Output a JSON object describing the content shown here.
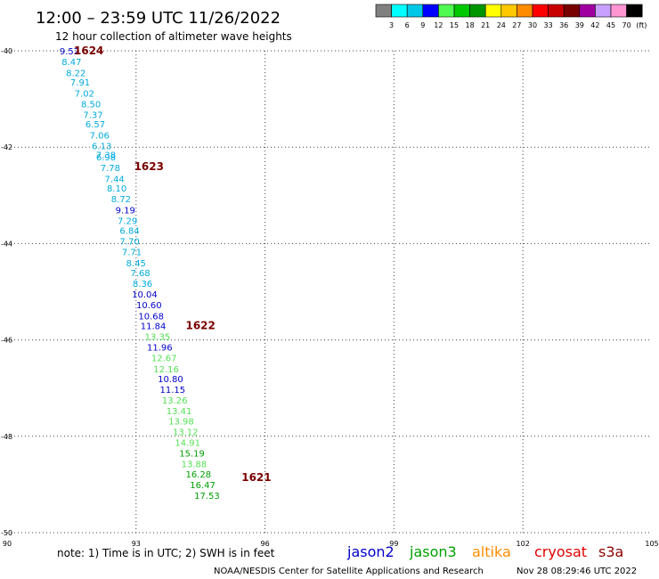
{
  "header": {
    "title": "12:00 – 23:59 UTC 11/26/2022",
    "subtitle": "12 hour collection of altimeter wave heights"
  },
  "legend": {
    "colors": [
      "#808080",
      "#00ffff",
      "#00c8e6",
      "#0000ff",
      "#50fa50",
      "#00c800",
      "#009600",
      "#ffff00",
      "#ffc800",
      "#ff8c00",
      "#ff0000",
      "#c80000",
      "#780000",
      "#a000a0",
      "#c8a0ff",
      "#ff96d2",
      "#000000"
    ],
    "labels": [
      "3",
      "6",
      "9",
      "12",
      "15",
      "18",
      "21",
      "24",
      "27",
      "30",
      "33",
      "36",
      "39",
      "42",
      "45",
      "70",
      "(ft)"
    ]
  },
  "footer": {
    "note": "note:  1) Time is in UTC;  2) SWH is in feet",
    "satellites": [
      {
        "name": "jason2",
        "color": "#0000c8"
      },
      {
        "name": "jason3",
        "color": "#00a000"
      },
      {
        "name": "altika",
        "color": "#ff8c00"
      },
      {
        "name": "cryosat",
        "color": "#e00000"
      },
      {
        "name": "s3a",
        "color": "#8b0000"
      }
    ],
    "credit": "NOAA/NESDIS Center for Satellite Applications and Research",
    "generated": "Nov 28 08:29:46 UTC 2022"
  },
  "chart_data": {
    "type": "scatter",
    "title": "12:00 – 23:59 UTC 11/26/2022",
    "xlabel": "",
    "ylabel": "",
    "xlim": [
      90,
      105
    ],
    "ylim": [
      -50,
      -40
    ],
    "x_ticks": [
      90,
      93,
      96,
      99,
      102,
      105
    ],
    "y_ticks": [
      -40,
      -42,
      -44,
      -46,
      -48,
      -50
    ],
    "grid": true,
    "points": [
      {
        "x": 91.45,
        "y": -40.0,
        "v": "9.52",
        "c": "#0000c8"
      },
      {
        "x": 91.5,
        "y": -40.22,
        "v": "8.47",
        "c": "#00aadd"
      },
      {
        "x": 91.6,
        "y": -40.45,
        "v": "8.22",
        "c": "#00aadd"
      },
      {
        "x": 91.7,
        "y": -40.65,
        "v": "7.91",
        "c": "#00aadd"
      },
      {
        "x": 91.8,
        "y": -40.88,
        "v": "7.02",
        "c": "#00aadd"
      },
      {
        "x": 91.95,
        "y": -41.1,
        "v": "8.50",
        "c": "#00aadd"
      },
      {
        "x": 92.0,
        "y": -41.32,
        "v": "7.37",
        "c": "#00aadd"
      },
      {
        "x": 92.05,
        "y": -41.52,
        "v": "6.57",
        "c": "#00aadd"
      },
      {
        "x": 92.15,
        "y": -41.75,
        "v": "7.06",
        "c": "#00aadd"
      },
      {
        "x": 92.2,
        "y": -41.97,
        "v": "6.13",
        "c": "#00aadd"
      },
      {
        "x": 92.3,
        "y": -42.15,
        "v": "7.38",
        "c": "#00aadd"
      },
      {
        "x": 92.3,
        "y": -42.2,
        "v": "6.98",
        "c": "#00aadd"
      },
      {
        "x": 92.4,
        "y": -42.42,
        "v": "7.78",
        "c": "#00aadd"
      },
      {
        "x": 92.5,
        "y": -42.65,
        "v": "7.44",
        "c": "#00aadd"
      },
      {
        "x": 92.55,
        "y": -42.85,
        "v": "8.10",
        "c": "#00aadd"
      },
      {
        "x": 92.65,
        "y": -43.07,
        "v": "8.72",
        "c": "#00aadd"
      },
      {
        "x": 92.75,
        "y": -43.3,
        "v": "9.19",
        "c": "#0000c8"
      },
      {
        "x": 92.8,
        "y": -43.52,
        "v": "7.29",
        "c": "#00aadd"
      },
      {
        "x": 92.85,
        "y": -43.72,
        "v": "6.84",
        "c": "#00aadd"
      },
      {
        "x": 92.85,
        "y": -43.95,
        "v": "7.70",
        "c": "#00aadd"
      },
      {
        "x": 92.9,
        "y": -44.17,
        "v": "7.71",
        "c": "#00aadd"
      },
      {
        "x": 93.0,
        "y": -44.4,
        "v": "8.45",
        "c": "#00aadd"
      },
      {
        "x": 93.1,
        "y": -44.6,
        "v": "7.68",
        "c": "#00aadd"
      },
      {
        "x": 93.15,
        "y": -44.82,
        "v": "8.36",
        "c": "#00aadd"
      },
      {
        "x": 93.2,
        "y": -45.05,
        "v": "10.04",
        "c": "#0000c8"
      },
      {
        "x": 93.3,
        "y": -45.27,
        "v": "10.60",
        "c": "#0000c8"
      },
      {
        "x": 93.35,
        "y": -45.5,
        "v": "10.68",
        "c": "#0000c8"
      },
      {
        "x": 93.4,
        "y": -45.7,
        "v": "11.84",
        "c": "#0000c8"
      },
      {
        "x": 93.5,
        "y": -45.92,
        "v": "13.35",
        "c": "#55e055"
      },
      {
        "x": 93.55,
        "y": -46.15,
        "v": "11.96",
        "c": "#0000c8"
      },
      {
        "x": 93.65,
        "y": -46.37,
        "v": "12.67",
        "c": "#55e055"
      },
      {
        "x": 93.7,
        "y": -46.6,
        "v": "12.16",
        "c": "#55e055"
      },
      {
        "x": 93.8,
        "y": -46.8,
        "v": "10.80",
        "c": "#0000c8"
      },
      {
        "x": 93.85,
        "y": -47.02,
        "v": "11.15",
        "c": "#0000c8"
      },
      {
        "x": 93.9,
        "y": -47.25,
        "v": "13.26",
        "c": "#55e055"
      },
      {
        "x": 94.0,
        "y": -47.47,
        "v": "13.41",
        "c": "#55e055"
      },
      {
        "x": 94.05,
        "y": -47.68,
        "v": "13.98",
        "c": "#55e055"
      },
      {
        "x": 94.15,
        "y": -47.9,
        "v": "13.12",
        "c": "#55e055"
      },
      {
        "x": 94.2,
        "y": -48.12,
        "v": "14.91",
        "c": "#55e055"
      },
      {
        "x": 94.3,
        "y": -48.35,
        "v": "15.19",
        "c": "#00a000"
      },
      {
        "x": 94.35,
        "y": -48.57,
        "v": "13.88",
        "c": "#55e055"
      },
      {
        "x": 94.45,
        "y": -48.78,
        "v": "16.28",
        "c": "#00a000"
      },
      {
        "x": 94.55,
        "y": -49.0,
        "v": "16.47",
        "c": "#00a000"
      },
      {
        "x": 94.65,
        "y": -49.22,
        "v": "17.53",
        "c": "#00a000"
      }
    ],
    "time_labels": [
      {
        "x": 91.9,
        "y": -40.0,
        "t": "1624"
      },
      {
        "x": 93.3,
        "y": -42.4,
        "t": "1623"
      },
      {
        "x": 94.5,
        "y": -45.7,
        "t": "1622"
      },
      {
        "x": 95.8,
        "y": -48.85,
        "t": "1621"
      }
    ]
  }
}
